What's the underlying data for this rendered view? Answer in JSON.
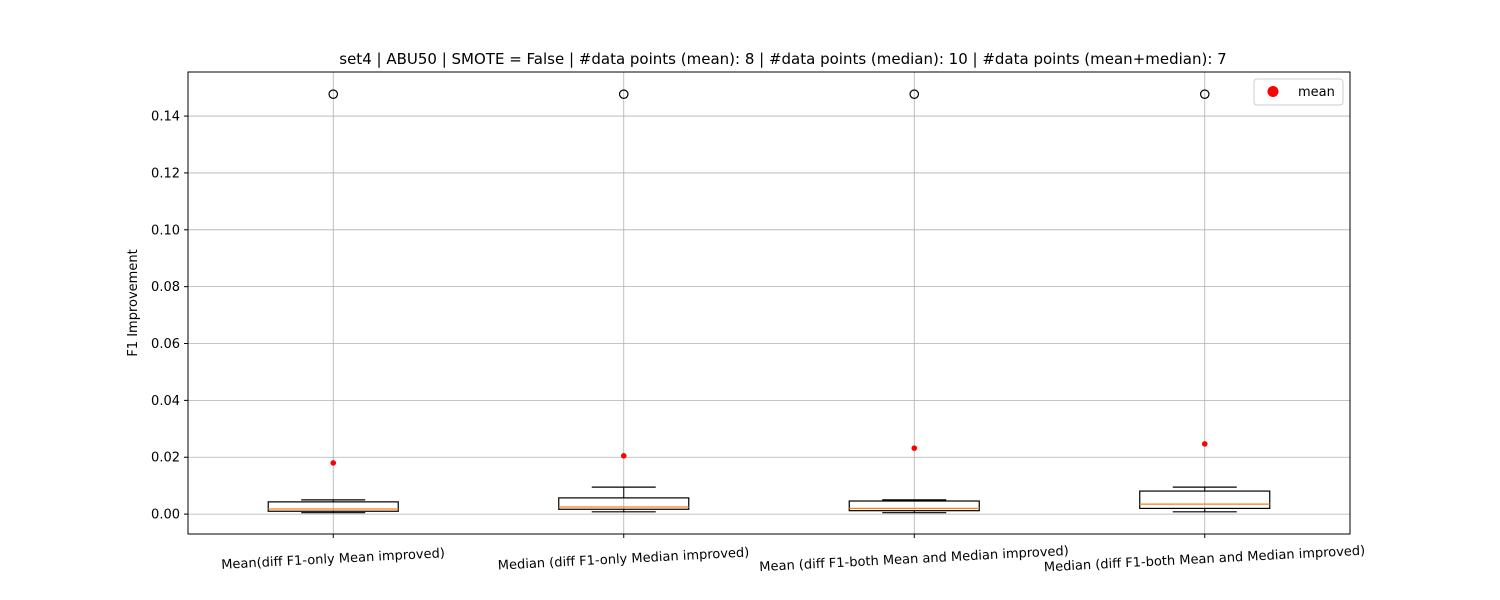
{
  "chart_data": {
    "type": "box",
    "title": "set4 | ABU50 | SMOTE = False | #data points (mean): 8 | #data points (median): 10 | #data points (mean+median): 7",
    "xlabel": "",
    "ylabel": "F1 Improvement",
    "ylim": [
      -0.007,
      0.1555
    ],
    "yticks": [
      0.0,
      0.02,
      0.04,
      0.06,
      0.08,
      0.1,
      0.12,
      0.14
    ],
    "grid": true,
    "legend": {
      "position": "top-right",
      "entries": [
        {
          "label": "mean",
          "color": "#ff0000"
        }
      ]
    },
    "categories": [
      "Mean(diff F1-only Mean improved)",
      "Median (diff F1-only Median improved)",
      "Mean (diff F1-both Mean and Median improved)",
      "Median (diff F1-both Mean and Median improved)"
    ],
    "boxes": [
      {
        "whisker_low": 0.0005,
        "q1": 0.001,
        "median": 0.0018,
        "q3": 0.0043,
        "whisker_high": 0.005,
        "mean": 0.018,
        "outliers": [
          0.1477
        ]
      },
      {
        "whisker_low": 0.0008,
        "q1": 0.0017,
        "median": 0.0025,
        "q3": 0.0057,
        "whisker_high": 0.0095,
        "mean": 0.0205,
        "outliers": [
          0.1477
        ]
      },
      {
        "whisker_low": 0.0005,
        "q1": 0.0012,
        "median": 0.002,
        "q3": 0.0046,
        "whisker_high": 0.005,
        "mean": 0.0232,
        "outliers": [
          0.1477
        ]
      },
      {
        "whisker_low": 0.0008,
        "q1": 0.002,
        "median": 0.0035,
        "q3": 0.0081,
        "whisker_high": 0.0095,
        "mean": 0.0247,
        "outliers": [
          0.1477
        ]
      }
    ]
  }
}
